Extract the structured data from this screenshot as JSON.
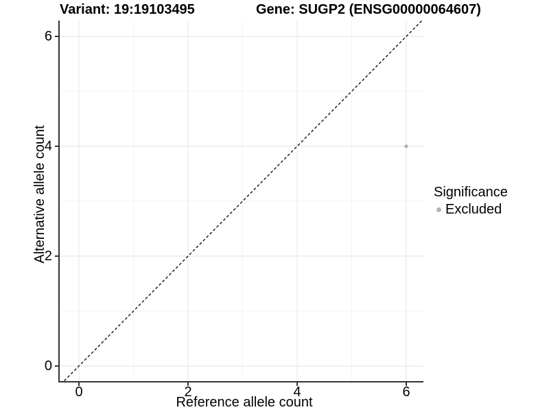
{
  "chart_data": {
    "type": "scatter",
    "titles": {
      "variant": "Variant: 19:19103495",
      "gene": "Gene: SUGP2 (ENSG00000064607)"
    },
    "xlabel": "Reference allele count",
    "ylabel": "Alternative allele count",
    "xlim": [
      -0.36,
      6.32
    ],
    "ylim": [
      -0.29,
      6.29
    ],
    "x_ticks": [
      0,
      2,
      4,
      6
    ],
    "y_ticks": [
      0,
      2,
      4,
      6
    ],
    "x_minor_ticks": [
      1,
      3,
      5
    ],
    "y_minor_ticks": [
      1,
      3,
      5
    ],
    "grid": true,
    "points": [
      {
        "x": 6,
        "y": 4,
        "series": "Excluded"
      }
    ],
    "identity_line": {
      "style": "dashed",
      "from": [
        -0.27,
        -0.27
      ],
      "to": [
        6.3,
        6.3
      ]
    },
    "legend": {
      "title": "Significance",
      "position": "right",
      "items": [
        {
          "label": "Excluded",
          "color": "#b3b3b3"
        }
      ]
    },
    "colors": {
      "excluded": "#b3b3b3",
      "grid_major": "#e8e8e8",
      "grid_minor": "#f3f3f3",
      "axis": "#333333",
      "dashed_line": "#000000"
    }
  }
}
